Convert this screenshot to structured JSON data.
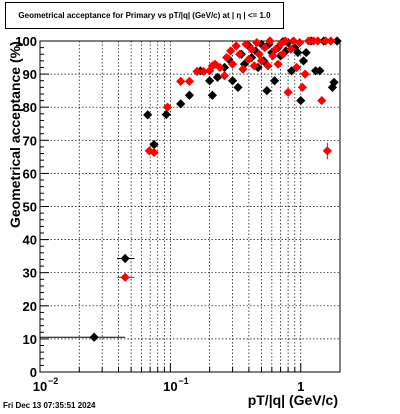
{
  "chart_data": {
    "type": "scatter",
    "title": "Geometrical acceptance for Primary vs pT/|q| (GeV/c) at |  η  | <= 1.0",
    "xlabel": "pT/|q| (GeV/c)",
    "ylabel": "Geometrical acceptance (%)",
    "xscale": "log",
    "xlim": [
      0.01,
      2.0
    ],
    "ylim": [
      0,
      100
    ],
    "grid": true,
    "x_ticks": [
      {
        "value": 0.01,
        "label": "10",
        "sup": "−2"
      },
      {
        "value": 0.1,
        "label": "10",
        "sup": "−1"
      },
      {
        "value": 1,
        "label": "1",
        "sup": ""
      }
    ],
    "y_ticks": [
      {
        "value": 0,
        "label": "0"
      },
      {
        "value": 10,
        "label": "10"
      },
      {
        "value": 20,
        "label": "20"
      },
      {
        "value": 30,
        "label": "30"
      },
      {
        "value": 40,
        "label": "40"
      },
      {
        "value": 50,
        "label": "50"
      },
      {
        "value": 60,
        "label": "60"
      },
      {
        "value": 70,
        "label": "70"
      },
      {
        "value": 80,
        "label": "80"
      },
      {
        "value": 90,
        "label": "90"
      },
      {
        "value": 100,
        "label": "100"
      }
    ],
    "series": [
      {
        "color": "#000000",
        "points": [
          {
            "x": 0.026,
            "y": 10.5,
            "xlo": 0.01,
            "xhi": 0.045
          },
          {
            "x": 0.045,
            "y": 34.3,
            "xlo": 0.039,
            "xhi": 0.053
          },
          {
            "x": 0.067,
            "y": 77.7
          },
          {
            "x": 0.075,
            "y": 68.7
          },
          {
            "x": 0.093,
            "y": 77.8,
            "xlo": 0.086,
            "xhi": 0.101
          },
          {
            "x": 0.12,
            "y": 81.0
          },
          {
            "x": 0.14,
            "y": 83.6
          },
          {
            "x": 0.17,
            "y": 91.0
          },
          {
            "x": 0.2,
            "y": 88.0
          },
          {
            "x": 0.21,
            "y": 83.6
          },
          {
            "x": 0.23,
            "y": 89.0
          },
          {
            "x": 0.26,
            "y": 92.0
          },
          {
            "x": 0.28,
            "y": 94.5
          },
          {
            "x": 0.3,
            "y": 88.0
          },
          {
            "x": 0.33,
            "y": 86.0
          },
          {
            "x": 0.35,
            "y": 96.0
          },
          {
            "x": 0.37,
            "y": 93.0
          },
          {
            "x": 0.4,
            "y": 98.5
          },
          {
            "x": 0.42,
            "y": 95.0
          },
          {
            "x": 0.45,
            "y": 97.0
          },
          {
            "x": 0.47,
            "y": 92.0
          },
          {
            "x": 0.5,
            "y": 99.0
          },
          {
            "x": 0.52,
            "y": 94.0
          },
          {
            "x": 0.55,
            "y": 85.0
          },
          {
            "x": 0.57,
            "y": 99.0
          },
          {
            "x": 0.6,
            "y": 96.5
          },
          {
            "x": 0.63,
            "y": 88.0
          },
          {
            "x": 0.67,
            "y": 98.0
          },
          {
            "x": 0.7,
            "y": 95.5
          },
          {
            "x": 0.73,
            "y": 99.8
          },
          {
            "x": 0.77,
            "y": 97.0
          },
          {
            "x": 0.8,
            "y": 99.5
          },
          {
            "x": 0.85,
            "y": 91.0
          },
          {
            "x": 0.9,
            "y": 98.0
          },
          {
            "x": 0.95,
            "y": 96.5
          },
          {
            "x": 1.0,
            "y": 82.0
          },
          {
            "x": 1.05,
            "y": 94.0
          },
          {
            "x": 1.1,
            "y": 96.5
          },
          {
            "x": 1.2,
            "y": 100.0
          },
          {
            "x": 1.3,
            "y": 91.0
          },
          {
            "x": 1.4,
            "y": 91.0
          },
          {
            "x": 1.5,
            "y": 100.0
          },
          {
            "x": 1.75,
            "y": 86.0
          },
          {
            "x": 1.8,
            "y": 87.5
          },
          {
            "x": 1.9,
            "y": 100.0
          }
        ]
      },
      {
        "color": "#ff0000",
        "points": [
          {
            "x": 0.045,
            "y": 28.6,
            "xlo": 0.039,
            "xhi": 0.053
          },
          {
            "x": 0.069,
            "y": 66.8
          },
          {
            "x": 0.075,
            "y": 66.3
          },
          {
            "x": 0.095,
            "y": 80.0
          },
          {
            "x": 0.12,
            "y": 87.8
          },
          {
            "x": 0.14,
            "y": 87.8
          },
          {
            "x": 0.16,
            "y": 90.8
          },
          {
            "x": 0.18,
            "y": 90.8
          },
          {
            "x": 0.2,
            "y": 91.0
          },
          {
            "x": 0.21,
            "y": 92.5
          },
          {
            "x": 0.22,
            "y": 93.0
          },
          {
            "x": 0.24,
            "y": 92.0
          },
          {
            "x": 0.26,
            "y": 89.5
          },
          {
            "x": 0.27,
            "y": 95.0
          },
          {
            "x": 0.29,
            "y": 97.0
          },
          {
            "x": 0.3,
            "y": 93.0
          },
          {
            "x": 0.32,
            "y": 98.5
          },
          {
            "x": 0.34,
            "y": 96.0
          },
          {
            "x": 0.36,
            "y": 91.5
          },
          {
            "x": 0.38,
            "y": 99.0
          },
          {
            "x": 0.4,
            "y": 94.5
          },
          {
            "x": 0.42,
            "y": 97.5
          },
          {
            "x": 0.44,
            "y": 92.5
          },
          {
            "x": 0.46,
            "y": 99.5
          },
          {
            "x": 0.48,
            "y": 96.0
          },
          {
            "x": 0.5,
            "y": 94.0
          },
          {
            "x": 0.53,
            "y": 98.0
          },
          {
            "x": 0.56,
            "y": 92.5
          },
          {
            "x": 0.58,
            "y": 100.0
          },
          {
            "x": 0.61,
            "y": 95.5
          },
          {
            "x": 0.64,
            "y": 97.5
          },
          {
            "x": 0.67,
            "y": 93.0
          },
          {
            "x": 0.7,
            "y": 99.0
          },
          {
            "x": 0.73,
            "y": 96.0
          },
          {
            "x": 0.76,
            "y": 100.0
          },
          {
            "x": 0.8,
            "y": 84.5
          },
          {
            "x": 0.84,
            "y": 97.5
          },
          {
            "x": 0.88,
            "y": 100.0
          },
          {
            "x": 0.93,
            "y": 92.0
          },
          {
            "x": 0.98,
            "y": 99.5
          },
          {
            "x": 1.03,
            "y": 86.0
          },
          {
            "x": 1.08,
            "y": 90.0
          },
          {
            "x": 1.15,
            "y": 100.0
          },
          {
            "x": 1.25,
            "y": 100.0
          },
          {
            "x": 1.35,
            "y": 100.0
          },
          {
            "x": 1.45,
            "y": 82.0
          },
          {
            "x": 1.55,
            "y": 100.0
          },
          {
            "x": 1.6,
            "y": 66.8,
            "yerr": 2.5
          },
          {
            "x": 1.7,
            "y": 100.0
          }
        ]
      }
    ]
  },
  "footer": "Fri Dec 13 07:35:51 2024"
}
